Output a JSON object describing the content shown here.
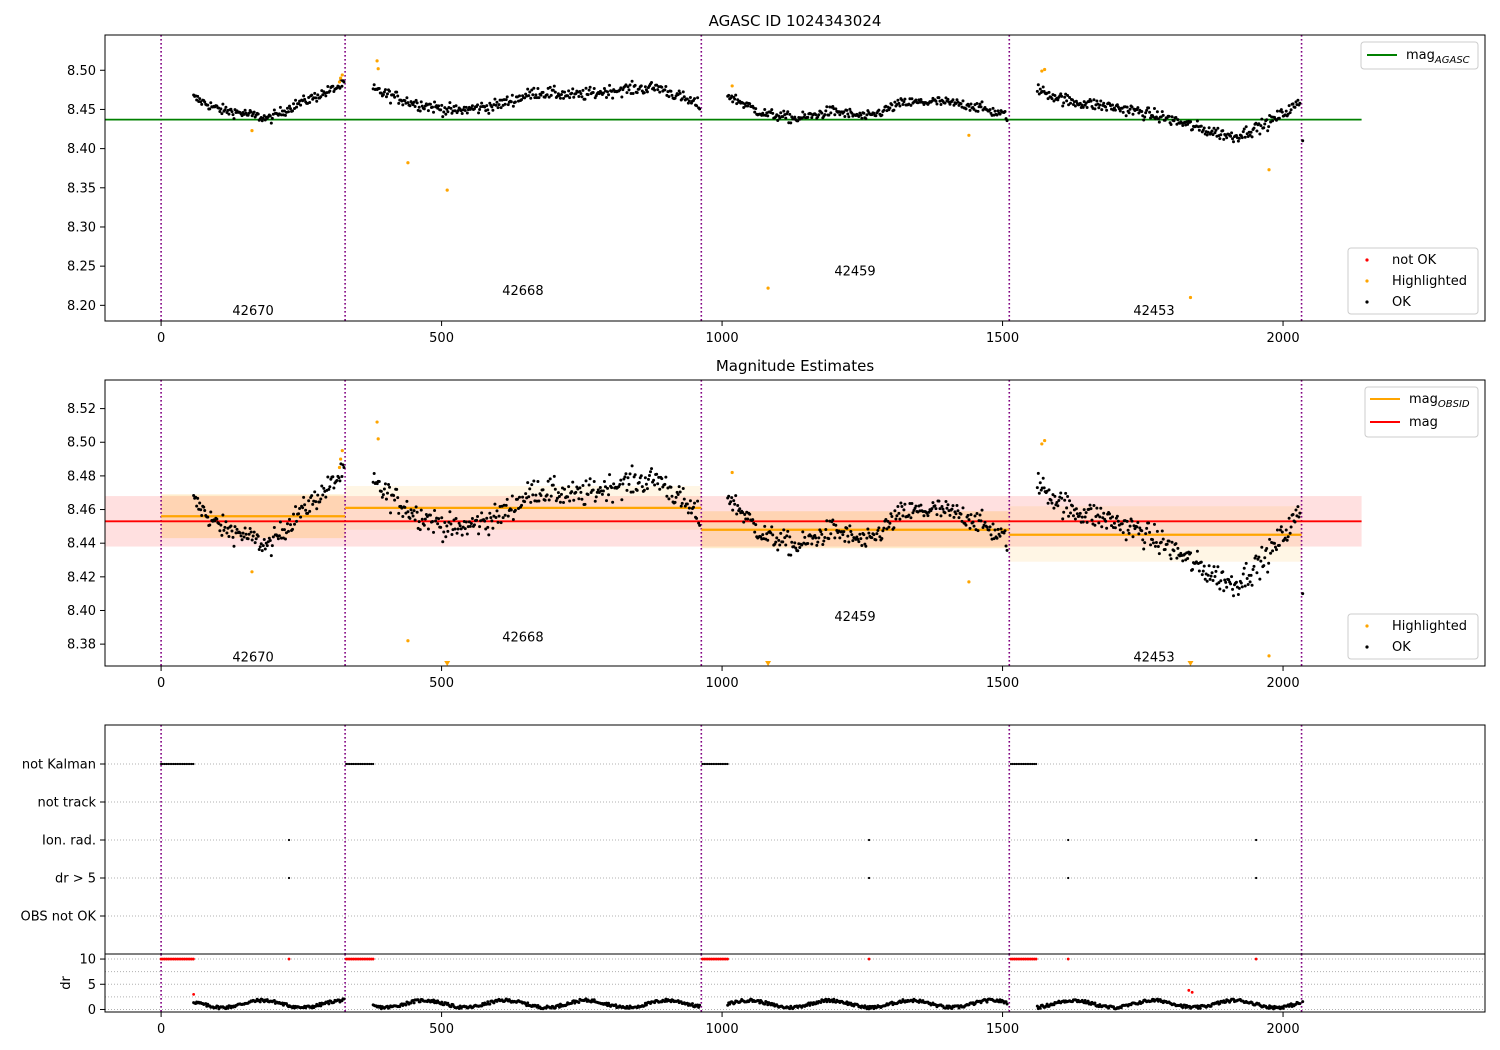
{
  "figure": {
    "top_title": "AGASC ID 1024343024",
    "mid_title": "Magnitude Estimates"
  },
  "colors": {
    "ok": "#000000",
    "highlighted": "#ffa500",
    "not_ok": "#ff0000",
    "mag_agasc": "#008000",
    "mag_obsid": "#ffa500",
    "mag": "#ff0000",
    "obs_boundary": "#800080",
    "grid": "#b0b0b0"
  },
  "chart_data": [
    {
      "id": "top",
      "type": "scatter",
      "title": "AGASC ID 1024343024",
      "xlim": [
        -100,
        2360
      ],
      "ylim": [
        8.18,
        8.545
      ],
      "xticks": [
        0,
        500,
        1000,
        1500,
        2000
      ],
      "yticks": [
        8.2,
        8.25,
        8.3,
        8.35,
        8.4,
        8.45,
        8.5
      ],
      "ytick_labels": [
        "8.20",
        "8.25",
        "8.30",
        "8.35",
        "8.40",
        "8.45",
        "8.50"
      ],
      "mag_agasc": {
        "value": 8.437,
        "x_range": [
          -100,
          2140
        ]
      },
      "obs_boundaries": [
        0,
        328,
        963,
        1512,
        2033
      ],
      "obsids": [
        {
          "label": "42670",
          "x": 164,
          "y": 8.193
        },
        {
          "label": "42668",
          "x": 645,
          "y": 8.218
        },
        {
          "label": "42459",
          "x": 1237,
          "y": 8.243
        },
        {
          "label": "42453",
          "x": 1770,
          "y": 8.193
        }
      ],
      "segments": [
        {
          "start": 58,
          "end": 326,
          "n": 150,
          "base": [
            8.465,
            8.45,
            8.445,
            8.438,
            8.455,
            8.468,
            8.482
          ],
          "noise": 0.006
        },
        {
          "start": 378,
          "end": 960,
          "n": 320,
          "base": [
            8.475,
            8.458,
            8.448,
            8.455,
            8.472,
            8.468,
            8.475,
            8.478,
            8.455
          ],
          "noise": 0.007
        },
        {
          "start": 1010,
          "end": 1508,
          "n": 280,
          "base": [
            8.468,
            8.445,
            8.438,
            8.448,
            8.44,
            8.458,
            8.46,
            8.455,
            8.442
          ],
          "noise": 0.006
        },
        {
          "start": 1562,
          "end": 2030,
          "n": 270,
          "base": [
            8.475,
            8.46,
            8.455,
            8.448,
            8.438,
            8.425,
            8.415,
            8.432,
            8.458
          ],
          "noise": 0.007
        }
      ],
      "highlighted_points": [
        {
          "x": 162,
          "y": 8.423
        },
        {
          "x": 318,
          "y": 8.485
        },
        {
          "x": 320,
          "y": 8.49
        },
        {
          "x": 323,
          "y": 8.494
        },
        {
          "x": 385,
          "y": 8.512
        },
        {
          "x": 387,
          "y": 8.502
        },
        {
          "x": 440,
          "y": 8.382
        },
        {
          "x": 510,
          "y": 8.347
        },
        {
          "x": 1018,
          "y": 8.48
        },
        {
          "x": 1082,
          "y": 8.222
        },
        {
          "x": 1440,
          "y": 8.417
        },
        {
          "x": 1570,
          "y": 8.499
        },
        {
          "x": 1575,
          "y": 8.501
        },
        {
          "x": 1835,
          "y": 8.21
        },
        {
          "x": 1975,
          "y": 8.373
        }
      ],
      "legend_lines": [
        {
          "label_main": "mag",
          "label_sub": "AGASC",
          "color": "#008000"
        }
      ],
      "legend_points": [
        {
          "label": "not OK",
          "color": "#ff0000"
        },
        {
          "label": "Highlighted",
          "color": "#ffa500"
        },
        {
          "label": "OK",
          "color": "#000000"
        }
      ]
    },
    {
      "id": "mid",
      "type": "scatter",
      "title": "Magnitude Estimates",
      "xlim": [
        -100,
        2360
      ],
      "ylim": [
        8.367,
        8.537
      ],
      "xticks": [
        0,
        500,
        1000,
        1500,
        2000
      ],
      "yticks": [
        8.38,
        8.4,
        8.42,
        8.44,
        8.46,
        8.48,
        8.5,
        8.52
      ],
      "ytick_labels": [
        "8.38",
        "8.40",
        "8.42",
        "8.44",
        "8.46",
        "8.48",
        "8.50",
        "8.52"
      ],
      "mag": {
        "value": 8.453,
        "band": [
          8.438,
          8.468
        ],
        "x_range": [
          -100,
          2140
        ]
      },
      "mag_obsid": [
        {
          "x0": 0,
          "x1": 328,
          "value": 8.456,
          "band": [
            8.443,
            8.469
          ],
          "band_color": "#ffa500",
          "band_alpha": 0.2
        },
        {
          "x0": 328,
          "x1": 963,
          "value": 8.461,
          "band": [
            8.448,
            8.474
          ],
          "band_color": "#ffa500",
          "band_alpha": 0.1
        },
        {
          "x0": 963,
          "x1": 1512,
          "value": 8.448,
          "band": [
            8.437,
            8.459
          ],
          "band_color": "#ffa500",
          "band_alpha": 0.2
        },
        {
          "x0": 1512,
          "x1": 2033,
          "value": 8.445,
          "band": [
            8.429,
            8.462
          ],
          "band_color": "#ffa500",
          "band_alpha": 0.1
        }
      ],
      "obs_boundaries": [
        0,
        328,
        963,
        1512,
        2033
      ],
      "obsids": [
        {
          "label": "42670",
          "x": 164,
          "y": 8.372
        },
        {
          "label": "42668",
          "x": 645,
          "y": 8.384
        },
        {
          "label": "42459",
          "x": 1237,
          "y": 8.396
        },
        {
          "label": "42453",
          "x": 1770,
          "y": 8.372
        }
      ],
      "highlighted_points": [
        {
          "x": 162,
          "y": 8.423
        },
        {
          "x": 318,
          "y": 8.485
        },
        {
          "x": 320,
          "y": 8.49
        },
        {
          "x": 323,
          "y": 8.495
        },
        {
          "x": 385,
          "y": 8.512
        },
        {
          "x": 387,
          "y": 8.502
        },
        {
          "x": 440,
          "y": 8.382
        },
        {
          "x": 1018,
          "y": 8.482
        },
        {
          "x": 1440,
          "y": 8.417
        },
        {
          "x": 1570,
          "y": 8.499
        },
        {
          "x": 1575,
          "y": 8.501
        },
        {
          "x": 1975,
          "y": 8.373
        }
      ],
      "clipped_markers": [
        {
          "x": 510
        },
        {
          "x": 1082
        },
        {
          "x": 1835
        }
      ],
      "legend_lines": [
        {
          "label_main": "mag",
          "label_sub": "OBSID",
          "color": "#ffa500"
        },
        {
          "label_main": "mag",
          "label_sub": "",
          "color": "#ff0000"
        }
      ],
      "legend_points": [
        {
          "label": "Highlighted",
          "color": "#ffa500"
        },
        {
          "label": "OK",
          "color": "#000000"
        }
      ]
    },
    {
      "id": "flags",
      "type": "scatter",
      "xlim": [
        -100,
        2360
      ],
      "categories": [
        "not Kalman",
        "not track",
        "Ion. rad.",
        "dr > 5",
        "OBS not OK"
      ],
      "obs_boundaries": [
        0,
        328,
        963,
        1512,
        2033
      ],
      "not_kalman_ranges": [
        [
          0,
          60
        ],
        [
          330,
          378
        ],
        [
          965,
          1012
        ],
        [
          1515,
          1562
        ]
      ],
      "ion_rad_x": [
        228,
        1262,
        1617,
        1952
      ],
      "dr5_x": [
        228,
        1262,
        1617,
        1952
      ]
    },
    {
      "id": "dr",
      "type": "scatter",
      "xlim": [
        -100,
        2360
      ],
      "ylim": [
        -0.5,
        11
      ],
      "xticks": [
        0,
        500,
        1000,
        1500,
        2000
      ],
      "ylabel": "dr",
      "yticks": [
        0,
        5,
        10
      ],
      "ytick_labels": [
        "0",
        "5",
        "10"
      ],
      "red_at_10_ranges": [
        [
          0,
          60
        ],
        [
          330,
          378
        ],
        [
          965,
          1012
        ],
        [
          1515,
          1562
        ]
      ],
      "red_at_10_single_x": [
        228,
        1262,
        1617,
        1952
      ],
      "red_extra_points": [
        {
          "x": 58,
          "y": 3.0
        },
        {
          "x": 1832,
          "y": 3.8
        },
        {
          "x": 1838,
          "y": 3.4
        }
      ]
    }
  ]
}
